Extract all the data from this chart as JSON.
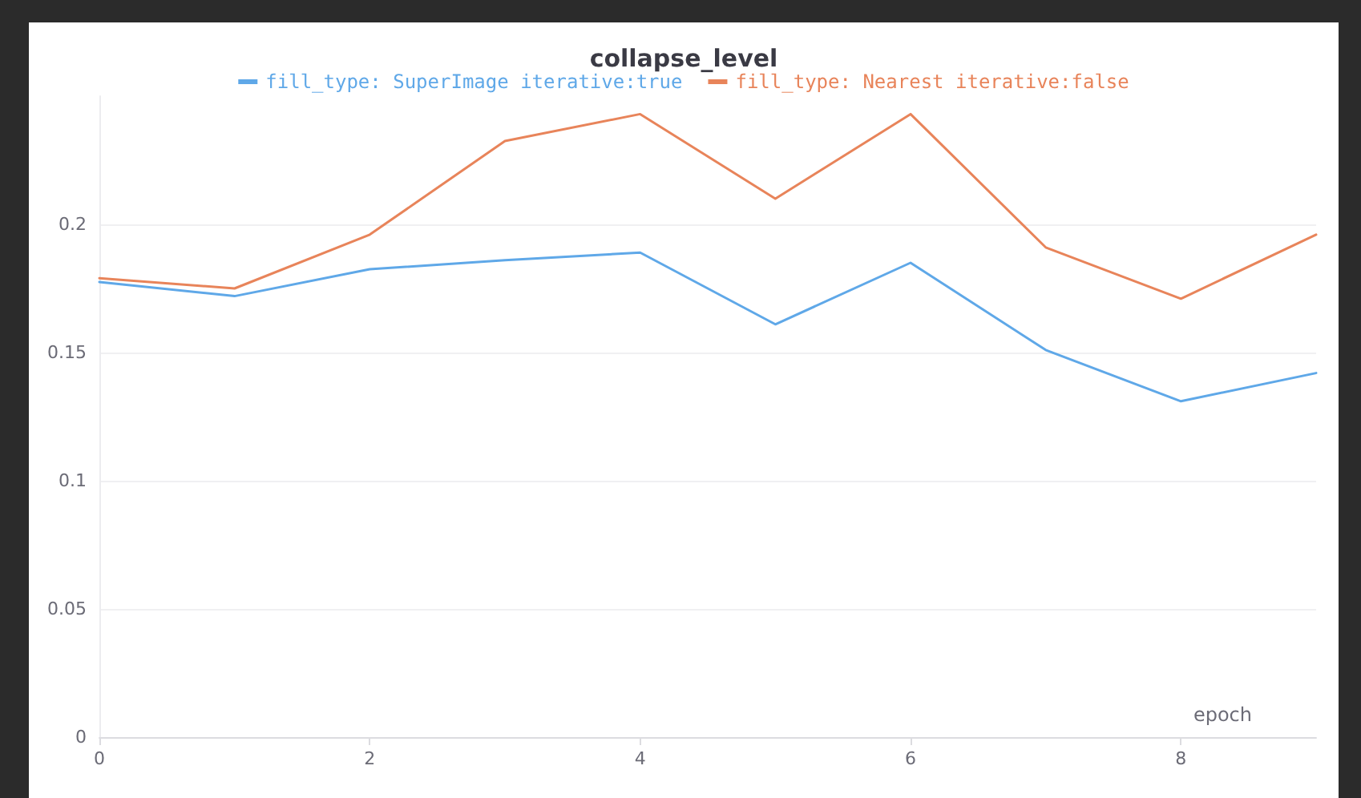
{
  "chart_data": {
    "type": "line",
    "title": "collapse_level",
    "xlabel": "epoch",
    "x": [
      0,
      1,
      2,
      3,
      4,
      5,
      6,
      7,
      8,
      9
    ],
    "series": [
      {
        "name": "fill_type: SuperImage iterative:true",
        "color": "#5fa8e8",
        "values": [
          0.1775,
          0.172,
          0.1825,
          0.186,
          0.189,
          0.161,
          0.185,
          0.151,
          0.131,
          0.142
        ]
      },
      {
        "name": "fill_type: Nearest iterative:false",
        "color": "#e8845a",
        "values": [
          0.179,
          0.175,
          0.196,
          0.2325,
          0.243,
          0.21,
          0.243,
          0.191,
          0.171,
          0.196
        ]
      }
    ],
    "xlim": [
      0,
      9
    ],
    "xticks": [
      0,
      2,
      4,
      6,
      8
    ],
    "ylim": [
      0,
      0.25
    ],
    "yticks": [
      0,
      0.05,
      0.1,
      0.15,
      0.2
    ],
    "grid": "y",
    "legend": "top",
    "marker": "none",
    "line_style": "solid"
  }
}
